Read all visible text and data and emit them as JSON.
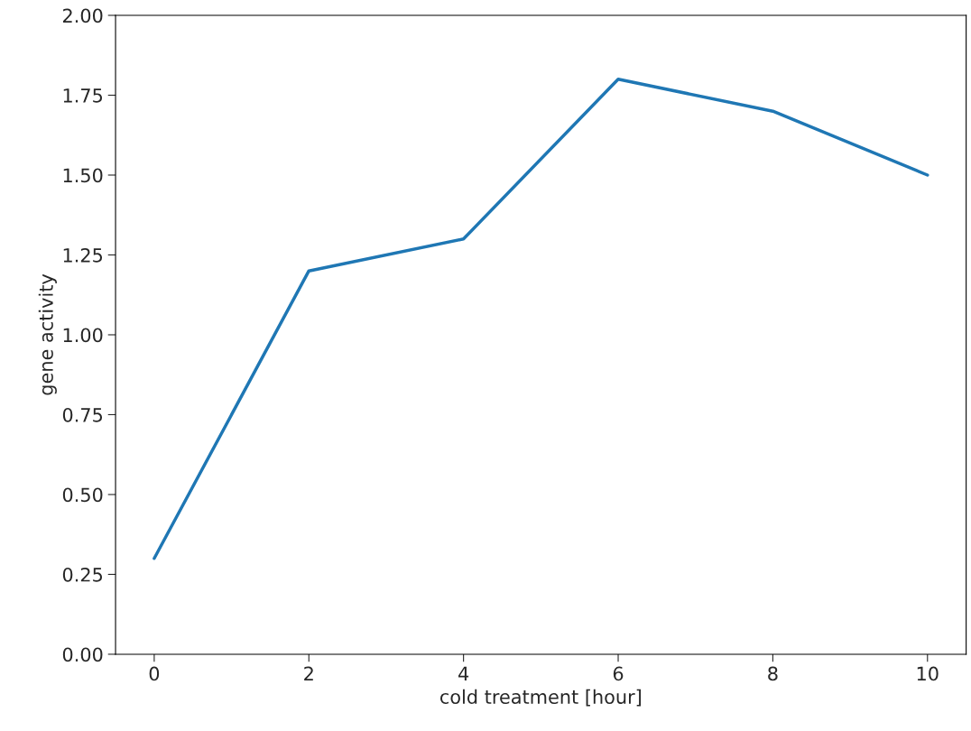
{
  "chart_data": {
    "type": "line",
    "xlabel": "cold treatment [hour]",
    "ylabel": "gene activity",
    "x": [
      0,
      2,
      4,
      6,
      8,
      10
    ],
    "series": [
      {
        "color": "#1f77b4",
        "values": [
          0.3,
          1.2,
          1.3,
          1.8,
          1.7,
          1.5
        ]
      }
    ],
    "xlim": [
      -0.5,
      10.5
    ],
    "xticks": [
      0,
      2,
      4,
      6,
      8,
      10
    ],
    "ylim": [
      0,
      2
    ],
    "yticks": [
      {
        "value": 0,
        "label": "0.00"
      },
      {
        "value": 0.25,
        "label": "0.25"
      },
      {
        "value": 0.5,
        "label": "0.50"
      },
      {
        "value": 0.75,
        "label": "0.75"
      },
      {
        "value": 1,
        "label": "1.00"
      },
      {
        "value": 1.25,
        "label": "1.25"
      },
      {
        "value": 1.5,
        "label": "1.50"
      },
      {
        "value": 1.75,
        "label": "1.75"
      },
      {
        "value": 2,
        "label": "2.00"
      }
    ],
    "grid": false,
    "legend": false
  }
}
